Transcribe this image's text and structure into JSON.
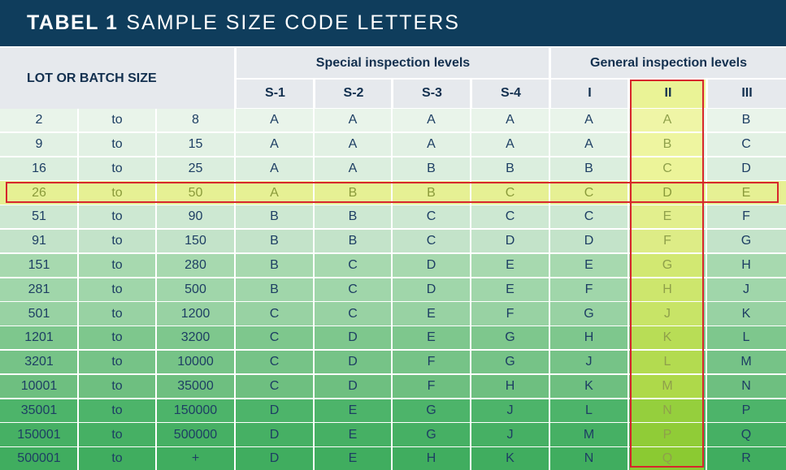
{
  "title": {
    "bold": "TABEL 1",
    "light": "SAMPLE SIZE CODE LETTERS"
  },
  "header": {
    "lot_label": "LOT OR BATCH SIZE",
    "special_label": "Special inspection levels",
    "general_label": "General inspection levels",
    "levels": [
      "S-1",
      "S-2",
      "S-3",
      "S-4",
      "I",
      "II",
      "III"
    ]
  },
  "rows": [
    {
      "from": "2",
      "to": "to",
      "until": "8",
      "codes": [
        "A",
        "A",
        "A",
        "A",
        "A",
        "A",
        "B"
      ]
    },
    {
      "from": "9",
      "to": "to",
      "until": "15",
      "codes": [
        "A",
        "A",
        "A",
        "A",
        "A",
        "B",
        "C"
      ]
    },
    {
      "from": "16",
      "to": "to",
      "until": "25",
      "codes": [
        "A",
        "A",
        "B",
        "B",
        "B",
        "C",
        "D"
      ]
    },
    {
      "from": "26",
      "to": "to",
      "until": "50",
      "codes": [
        "A",
        "B",
        "B",
        "C",
        "C",
        "D",
        "E"
      ]
    },
    {
      "from": "51",
      "to": "to",
      "until": "90",
      "codes": [
        "B",
        "B",
        "C",
        "C",
        "C",
        "E",
        "F"
      ]
    },
    {
      "from": "91",
      "to": "to",
      "until": "150",
      "codes": [
        "B",
        "B",
        "C",
        "D",
        "D",
        "F",
        "G"
      ]
    },
    {
      "from": "151",
      "to": "to",
      "until": "280",
      "codes": [
        "B",
        "C",
        "D",
        "E",
        "E",
        "G",
        "H"
      ]
    },
    {
      "from": "281",
      "to": "to",
      "until": "500",
      "codes": [
        "B",
        "C",
        "D",
        "E",
        "F",
        "H",
        "J"
      ]
    },
    {
      "from": "501",
      "to": "to",
      "until": "1200",
      "codes": [
        "C",
        "C",
        "E",
        "F",
        "G",
        "J",
        "K"
      ]
    },
    {
      "from": "1201",
      "to": "to",
      "until": "3200",
      "codes": [
        "C",
        "D",
        "E",
        "G",
        "H",
        "K",
        "L"
      ]
    },
    {
      "from": "3201",
      "to": "to",
      "until": "10000",
      "codes": [
        "C",
        "D",
        "F",
        "G",
        "J",
        "L",
        "M"
      ]
    },
    {
      "from": "10001",
      "to": "to",
      "until": "35000",
      "codes": [
        "C",
        "D",
        "F",
        "H",
        "K",
        "M",
        "N"
      ]
    },
    {
      "from": "35001",
      "to": "to",
      "until": "150000",
      "codes": [
        "D",
        "E",
        "G",
        "J",
        "L",
        "N",
        "P"
      ]
    },
    {
      "from": "150001",
      "to": "to",
      "until": "500000",
      "codes": [
        "D",
        "E",
        "G",
        "J",
        "M",
        "P",
        "Q"
      ]
    },
    {
      "from": "500001",
      "to": "to",
      "until": "+",
      "codes": [
        "D",
        "E",
        "H",
        "K",
        "N",
        "Q",
        "R"
      ]
    }
  ],
  "highlight": {
    "row_index": 3,
    "column_label": "II",
    "border_color": "#d7262c"
  },
  "colors": {
    "title_bg": "#0f3d5c",
    "header_bg": "#e6e9ed",
    "row_bg": [
      "#e9f4ea",
      "#e2f1e4",
      "#dbeede",
      "#e6f094",
      "#cde8d2",
      "#c3e3c9",
      "#a7d9af",
      "#a0d6aa",
      "#98d2a3",
      "#7ec78d",
      "#76c387",
      "#6ebf80",
      "#4db46a",
      "#46b064",
      "#40ad5f"
    ],
    "highlight_row_bg": "#e6f094",
    "colII_bg": [
      "#eff5a6",
      "#eef5a0",
      "#ecf499",
      "#e4ef86",
      "#e2ef8d",
      "#ddec86",
      "#d2e872",
      "#cde66d",
      "#c8e467",
      "#b8dd56",
      "#b3db50",
      "#aed94a",
      "#95cf3d",
      "#90cc37",
      "#8bca32"
    ]
  }
}
